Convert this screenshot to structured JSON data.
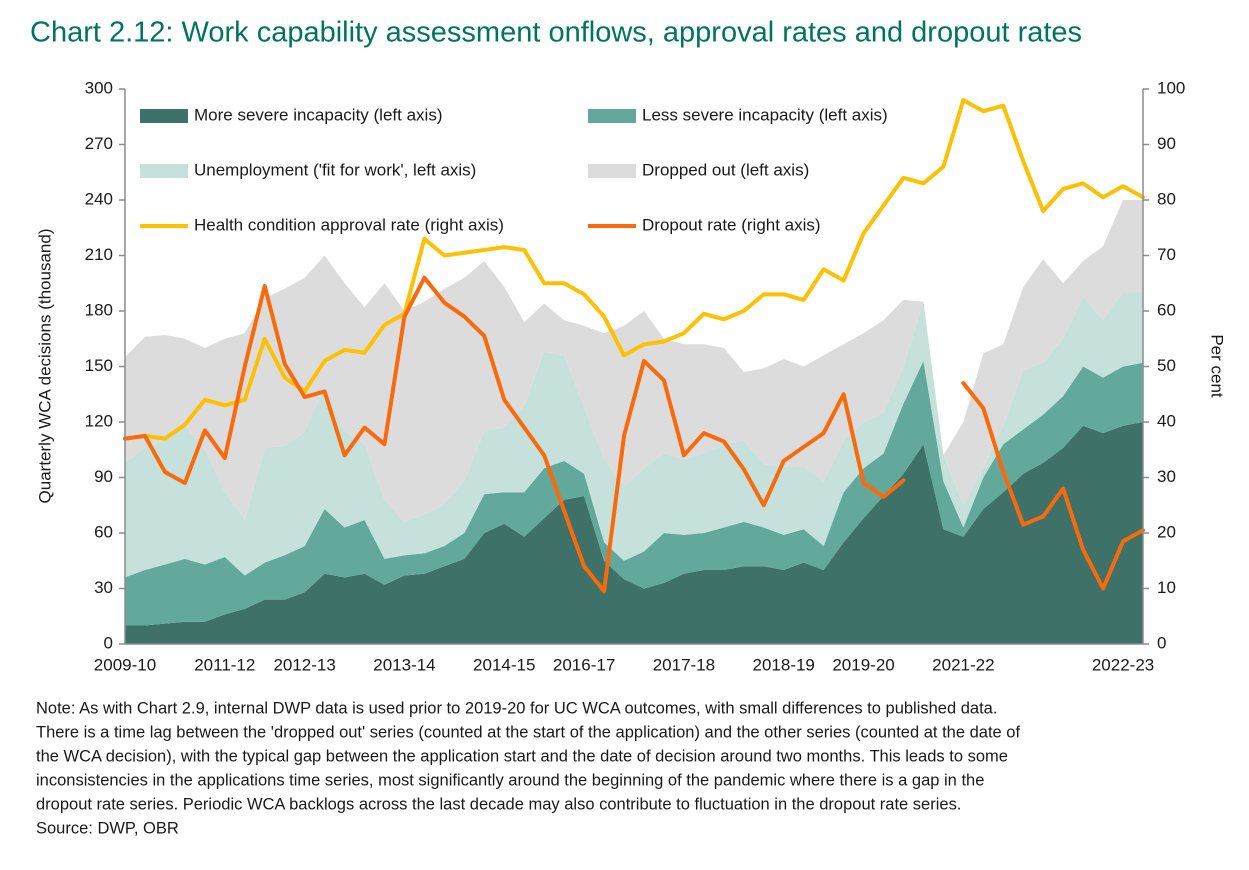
{
  "chart_data": {
    "type": "area",
    "title": "Chart 2.12: Work capability assessment onflows, approval rates and dropout rates",
    "y_label": "Quarterly WCA decisions (thousand)",
    "y2_label": "Per cent",
    "categories": [
      "2009-10",
      null,
      null,
      null,
      null,
      "2011-12",
      null,
      null,
      null,
      "2012-13",
      null,
      null,
      null,
      null,
      "2013-14",
      null,
      null,
      null,
      null,
      "2014-15",
      null,
      null,
      null,
      "2016-17",
      null,
      null,
      null,
      null,
      "2017-18",
      null,
      null,
      null,
      null,
      "2018-19",
      null,
      null,
      null,
      "2019-20",
      null,
      null,
      null,
      null,
      "2021-22",
      null,
      null,
      null,
      null,
      null,
      null,
      null,
      "2022-23",
      null
    ],
    "ylim": [
      0,
      300
    ],
    "yticks": [
      0,
      30,
      60,
      90,
      120,
      150,
      180,
      210,
      240,
      270,
      300
    ],
    "y2lim": [
      0,
      100
    ],
    "y2ticks": [
      0,
      10,
      20,
      30,
      40,
      50,
      60,
      70,
      80,
      90,
      100
    ],
    "legend": "top",
    "series": [
      {
        "name": "More severe incapacity (left axis)",
        "type": "area",
        "axis": "y",
        "color": "#3e7268",
        "values": [
          10,
          10,
          11,
          12,
          12,
          16,
          19,
          24,
          24,
          28,
          38,
          36,
          38,
          32,
          37,
          38,
          42,
          46,
          60,
          65,
          58,
          68,
          78,
          80,
          45,
          35,
          30,
          33,
          38,
          40,
          40,
          42,
          42,
          40,
          44,
          40,
          55,
          68,
          80,
          92,
          108,
          62,
          58,
          73,
          82,
          92,
          98,
          106,
          118,
          114,
          118,
          120
        ]
      },
      {
        "name": "Less severe incapacity (left axis)",
        "type": "area",
        "axis": "y",
        "color": "#62a99c",
        "values": [
          26,
          30,
          32,
          34,
          31,
          31,
          18,
          20,
          24,
          25,
          35,
          27,
          29,
          14,
          11,
          11,
          11,
          14,
          21,
          17,
          24,
          27,
          21,
          12,
          10,
          10,
          20,
          27,
          21,
          20,
          23,
          24,
          21,
          19,
          18,
          13,
          27,
          27,
          23,
          38,
          45,
          26,
          5,
          17,
          26,
          24,
          26,
          28,
          32,
          30,
          32,
          32
        ]
      },
      {
        "name": "Unemployment ('fit for work', left axis)",
        "type": "area",
        "axis": "y",
        "color": "#c6e0dc",
        "values": [
          62,
          66,
          67,
          72,
          62,
          35,
          30,
          62,
          59,
          62,
          66,
          52,
          41,
          32,
          18,
          21,
          23,
          28,
          34,
          35,
          47,
          63,
          57,
          36,
          45,
          40,
          45,
          43,
          41,
          43,
          45,
          44,
          34,
          37,
          34,
          35,
          28,
          25,
          22,
          20,
          32,
          14,
          12,
          5,
          10,
          32,
          28,
          31,
          38,
          31,
          40,
          38
        ]
      },
      {
        "name": "Dropped out (left axis)",
        "type": "area",
        "axis": "y",
        "color": "#dcdcdc",
        "values": [
          57,
          60,
          57,
          47,
          55,
          83,
          101,
          81,
          85,
          83,
          71,
          80,
          74,
          117,
          114,
          115,
          116,
          110,
          92,
          76,
          45,
          26,
          19,
          44,
          68,
          87,
          85,
          62,
          62,
          59,
          52,
          37,
          52,
          58,
          54,
          68,
          52,
          48,
          50,
          36,
          0,
          0,
          45,
          62,
          44,
          45,
          56,
          30,
          19,
          40,
          50,
          50
        ]
      },
      {
        "name": "Health condition approval rate (right axis)",
        "type": "line",
        "axis": "y2",
        "color": "#ffc000",
        "values": [
          37,
          37.5,
          37,
          39.5,
          44,
          43,
          44,
          55,
          48,
          45.5,
          51,
          53,
          52.5,
          57.5,
          59.5,
          73,
          70,
          70.5,
          71,
          71.5,
          71,
          65,
          65,
          63,
          59,
          52,
          54,
          54.5,
          56,
          59.5,
          58.5,
          60,
          63,
          63,
          62,
          67.5,
          65.5,
          74,
          79,
          84,
          83,
          86,
          98,
          96,
          97,
          87,
          78,
          82,
          83,
          80.5,
          82.5,
          80.5
        ]
      },
      {
        "name": "Dropout rate (right axis)",
        "type": "line",
        "axis": "y2",
        "color": "#fa6a0a",
        "values": [
          37,
          37.5,
          31,
          29,
          38.5,
          33.5,
          50,
          64.5,
          50.5,
          44.5,
          45.5,
          34,
          39,
          36,
          59,
          66,
          61.5,
          59,
          55.5,
          44,
          39,
          34,
          24,
          14,
          9.5,
          37.5,
          51,
          47.5,
          34,
          38,
          36.5,
          31.5,
          25,
          33,
          35.5,
          38,
          45,
          29,
          26.5,
          29.5,
          null,
          null,
          47,
          42.5,
          31,
          21.5,
          23,
          28,
          17,
          10,
          18.5,
          20.5
        ]
      }
    ],
    "note_lines": [
      "Note: As with Chart 2.9, internal DWP data is used prior to 2019-20 for UC WCA outcomes, with small differences to published data.",
      "There is a time lag between the 'dropped out' series (counted at the start of the application) and the other series (counted at the date of",
      "the WCA decision), with the typical gap between the application start and the date of decision around two months. This leads to some",
      "inconsistencies in the applications time series, most significantly around the beginning of the pandemic where there is a gap in the",
      "dropout rate series. Periodic WCA backlogs across the last decade may also contribute to fluctuation in the dropout rate series."
    ],
    "source": "Source: DWP, OBR"
  }
}
